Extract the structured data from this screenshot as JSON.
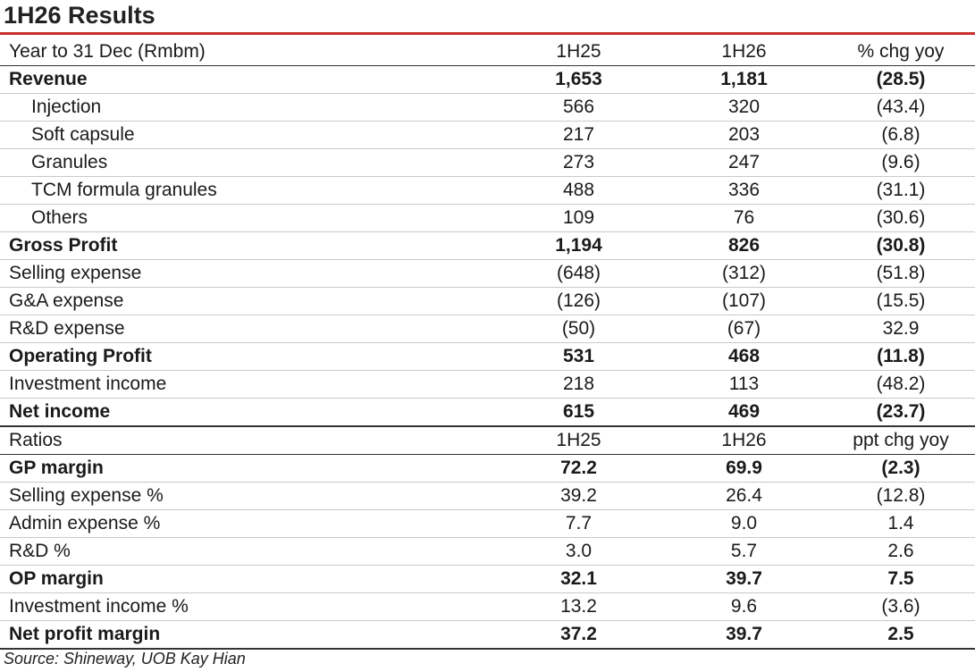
{
  "title": "1H26 Results",
  "header": {
    "label": "Year to 31 Dec (Rmbm)",
    "c1": "1H25",
    "c2": "1H26",
    "c3": "% chg yoy"
  },
  "rows": [
    {
      "label": "Revenue",
      "c1": "1,653",
      "c2": "1,181",
      "c3": "(28.5)"
    },
    {
      "label": "Injection",
      "c1": "566",
      "c2": "320",
      "c3": "(43.4)"
    },
    {
      "label": "Soft capsule",
      "c1": "217",
      "c2": "203",
      "c3": "(6.8)"
    },
    {
      "label": "Granules",
      "c1": "273",
      "c2": "247",
      "c3": "(9.6)"
    },
    {
      "label": "TCM formula granules",
      "c1": "488",
      "c2": "336",
      "c3": "(31.1)"
    },
    {
      "label": "Others",
      "c1": "109",
      "c2": "76",
      "c3": "(30.6)"
    },
    {
      "label": "Gross Profit",
      "c1": "1,194",
      "c2": "826",
      "c3": "(30.8)"
    },
    {
      "label": "Selling expense",
      "c1": "(648)",
      "c2": "(312)",
      "c3": "(51.8)"
    },
    {
      "label": "G&A expense",
      "c1": "(126)",
      "c2": "(107)",
      "c3": "(15.5)"
    },
    {
      "label": "R&D expense",
      "c1": "(50)",
      "c2": "(67)",
      "c3": "32.9"
    },
    {
      "label": "Operating Profit",
      "c1": "531",
      "c2": "468",
      "c3": "(11.8)"
    },
    {
      "label": "Investment income",
      "c1": "218",
      "c2": "113",
      "c3": "(48.2)"
    },
    {
      "label": "Net income",
      "c1": "615",
      "c2": "469",
      "c3": "(23.7)"
    }
  ],
  "ratios_header": {
    "label": "Ratios",
    "c1": "1H25",
    "c2": "1H26",
    "c3": "ppt chg yoy"
  },
  "ratios": [
    {
      "label": "GP margin",
      "c1": "72.2",
      "c2": "69.9",
      "c3": "(2.3)"
    },
    {
      "label": "Selling expense %",
      "c1": "39.2",
      "c2": "26.4",
      "c3": "(12.8)"
    },
    {
      "label": "Admin expense %",
      "c1": "7.7",
      "c2": "9.0",
      "c3": "1.4"
    },
    {
      "label": "R&D %",
      "c1": "3.0",
      "c2": "5.7",
      "c3": "2.6"
    },
    {
      "label": "OP margin",
      "c1": "32.1",
      "c2": "39.7",
      "c3": "7.5"
    },
    {
      "label": "Investment income %",
      "c1": "13.2",
      "c2": "9.6",
      "c3": "(3.6)"
    },
    {
      "label": "Net profit margin",
      "c1": "37.2",
      "c2": "39.7",
      "c3": "2.5"
    }
  ],
  "source": "Source: Shineway, UOB Kay Hian",
  "colors": {
    "accent_rule": "#c8302c",
    "grid_line": "#c9c9c9",
    "heavy_line": "#333333"
  }
}
